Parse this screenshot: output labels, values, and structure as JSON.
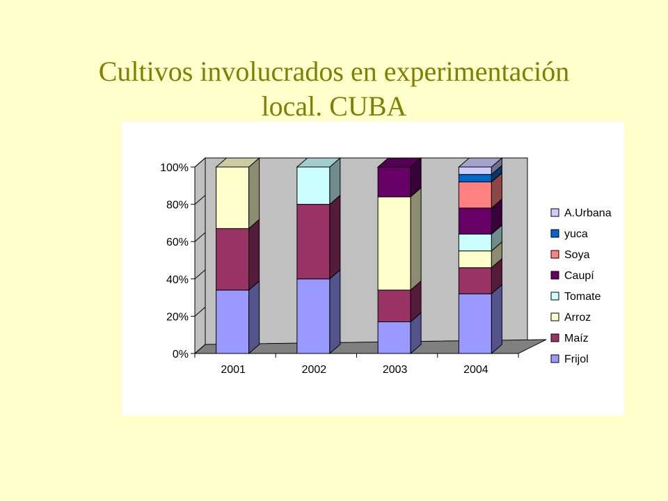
{
  "slide": {
    "title_line1": "Cultivos involucrados en experimentación",
    "title_line2": "local. CUBA"
  },
  "chart_data": {
    "type": "bar",
    "stacked": true,
    "percent": true,
    "three_d": true,
    "categories": [
      "2001",
      "2002",
      "2003",
      "2004"
    ],
    "series": [
      {
        "name": "Frijol",
        "color": "#9999FF",
        "values": [
          34,
          40,
          17,
          32
        ]
      },
      {
        "name": "Maíz",
        "color": "#993366",
        "values": [
          33,
          40,
          17,
          14
        ]
      },
      {
        "name": "Arroz",
        "color": "#FFFFCC",
        "values": [
          33,
          0,
          50,
          9
        ]
      },
      {
        "name": "Tomate",
        "color": "#CCFFFF",
        "values": [
          0,
          20,
          0,
          9
        ]
      },
      {
        "name": "Caupí",
        "color": "#660066",
        "values": [
          0,
          0,
          16,
          14
        ]
      },
      {
        "name": "Soya",
        "color": "#FF8080",
        "values": [
          0,
          0,
          0,
          14
        ]
      },
      {
        "name": "yuca",
        "color": "#0066CC",
        "values": [
          0,
          0,
          0,
          4
        ]
      },
      {
        "name": "A.Urbana",
        "color": "#CCCCFF",
        "values": [
          0,
          0,
          0,
          4
        ]
      }
    ],
    "y_ticks": [
      "0%",
      "20%",
      "40%",
      "60%",
      "80%",
      "100%"
    ],
    "ylim": [
      0,
      100
    ],
    "wall_color": "#C0C0C0",
    "floor_color": "#808080",
    "legend_position": "right",
    "grid": false
  }
}
